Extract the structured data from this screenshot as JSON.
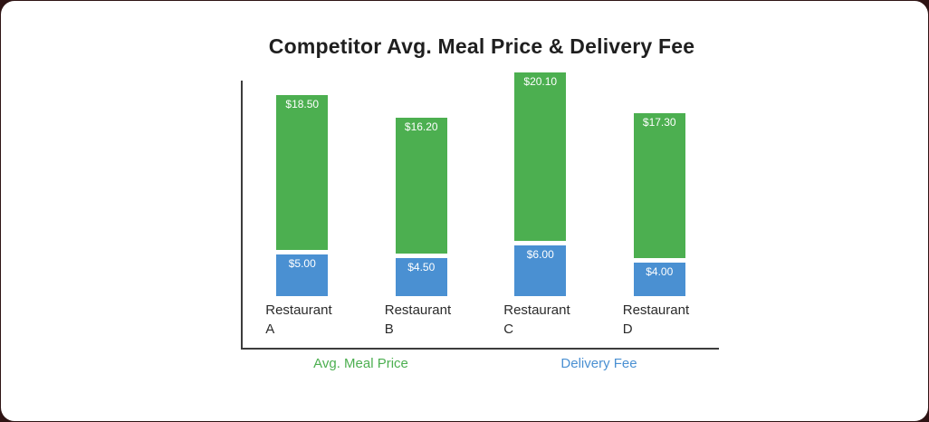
{
  "chart_data": {
    "type": "bar",
    "stacked": true,
    "title": "Competitor Avg. Meal Price & Delivery Fee",
    "categories": [
      "Restaurant A",
      "Restaurant B",
      "Restaurant C",
      "Restaurant D"
    ],
    "series": [
      {
        "name": "Avg. Meal Price",
        "color": "#4caf50",
        "position": "top",
        "values": [
          18.5,
          16.2,
          20.1,
          17.3
        ],
        "data_labels": [
          "$18.50",
          "$16.20",
          "$20.10",
          "$17.30"
        ]
      },
      {
        "name": "Delivery Fee",
        "color": "#4a90d2",
        "position": "bottom",
        "values": [
          5.0,
          4.5,
          6.0,
          4.0
        ],
        "data_labels": [
          "$5.00",
          "$4.50",
          "$6.00",
          "$4.00"
        ]
      }
    ],
    "legend": [
      {
        "label": "Avg. Meal Price",
        "color": "#4caf50"
      },
      {
        "label": "Delivery Fee",
        "color": "#4a90d2"
      }
    ],
    "legend_position": "bottom",
    "axis": {
      "show_left": true,
      "show_bottom": true,
      "grid": false
    },
    "value_unit": "$"
  },
  "colors": {
    "background": "#2e1414",
    "card": "#ffffff",
    "axis_line": "#3c3c3c",
    "title_text": "#1f1f1f",
    "category_text": "#2b2b2b",
    "value_label_text": "#ffffff"
  }
}
